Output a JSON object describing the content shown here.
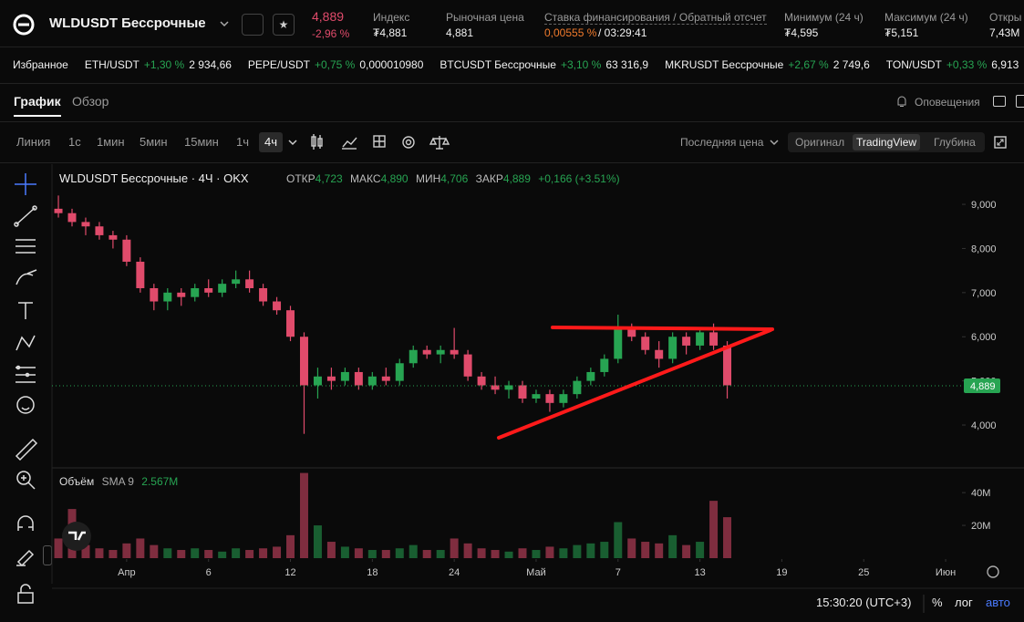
{
  "header": {
    "symbol": "WLDUSDT Бессрочные",
    "price": "4,889",
    "change": "-2,96 %",
    "index": {
      "label": "Индекс",
      "value": "₮4,881"
    },
    "mark": {
      "label": "Рыночная цена",
      "value": "4,881"
    },
    "funding": {
      "label": "Ставка финансирования / Обратный отсчет",
      "rate": "0,00555 %",
      "countdown": "/ 03:29:41"
    },
    "low": {
      "label": "Минимум (24 ч)",
      "value": "₮4,595"
    },
    "high": {
      "label": "Максимум (24 ч)",
      "value": "₮5,151"
    },
    "open_interest": {
      "label": "Откры",
      "value": "7,43M"
    }
  },
  "favorites": {
    "label": "Избранное",
    "items": [
      {
        "pair": "ETH/USDT",
        "change": "+1,30 %",
        "price": "2 934,66"
      },
      {
        "pair": "PEPE/USDT",
        "change": "+0,75 %",
        "price": "0,000010980"
      },
      {
        "pair": "BTCUSDT Бессрочные",
        "change": "+3,10 %",
        "price": "63 316,9"
      },
      {
        "pair": "MKRUSDT Бессрочные",
        "change": "+2,67 %",
        "price": "2 749,6"
      },
      {
        "pair": "TON/USDT",
        "change": "+0,33 %",
        "price": "6,913"
      }
    ]
  },
  "tabs": [
    "График",
    "Обзор"
  ],
  "alerts": "Оповещения",
  "intervals": [
    "Линия",
    "1с",
    "1мин",
    "5мин",
    "15мин",
    "1ч",
    "4ч"
  ],
  "price_source": "Последняя цена",
  "views": [
    "Оригинал",
    "TradingView",
    "Глубина"
  ],
  "legend": {
    "title": "WLDUSDT Бессрочные · 4Ч · OKX",
    "items": [
      {
        "label": "ОТКР",
        "value": "4,723"
      },
      {
        "label": "МАКС",
        "value": "4,890"
      },
      {
        "label": "МИН",
        "value": "4,706"
      },
      {
        "label": "ЗАКР",
        "value": "4,889"
      }
    ],
    "change": "+0,166 (+3.51%)"
  },
  "volume_legend": {
    "label": "Объём",
    "sma": "SMA 9",
    "value": "2.567M"
  },
  "status": {
    "time": "15:30:20 (UTC+3)",
    "percent": "%",
    "log": "лог",
    "auto": "авто"
  },
  "chart_data": {
    "type": "candlestick",
    "up_color": "#27a452",
    "down_color": "#e04b6b",
    "grid": false,
    "x": [
      -5,
      -4,
      -3,
      -2,
      -1,
      0,
      1,
      2,
      3,
      4,
      5,
      6,
      7,
      8,
      9,
      10,
      11,
      12,
      13,
      14,
      15,
      16,
      17,
      18,
      19,
      20,
      21,
      22,
      23,
      24,
      25,
      26,
      27,
      28,
      29,
      30,
      31,
      32,
      33,
      34,
      35,
      36,
      37,
      38,
      39,
      40,
      41,
      42,
      43,
      44
    ],
    "open": [
      8.9,
      8.8,
      8.6,
      8.5,
      8.3,
      8.2,
      7.7,
      7.1,
      6.8,
      7.0,
      6.9,
      7.1,
      7.0,
      7.2,
      7.3,
      7.1,
      6.8,
      6.6,
      6.0,
      4.9,
      5.1,
      5.0,
      5.2,
      4.9,
      5.1,
      5.0,
      5.4,
      5.7,
      5.6,
      5.7,
      5.6,
      5.1,
      4.9,
      4.8,
      4.9,
      4.6,
      4.7,
      4.5,
      4.7,
      5.0,
      5.2,
      5.5,
      6.2,
      6.0,
      5.7,
      5.5,
      6.0,
      5.8,
      6.1,
      5.8
    ],
    "high": [
      9.2,
      8.9,
      8.7,
      8.6,
      8.4,
      8.3,
      7.8,
      7.2,
      7.1,
      7.1,
      7.2,
      7.3,
      7.3,
      7.5,
      7.5,
      7.2,
      6.9,
      6.7,
      6.1,
      5.3,
      5.3,
      5.3,
      5.3,
      5.2,
      5.3,
      5.5,
      5.8,
      5.8,
      5.8,
      6.2,
      5.7,
      5.2,
      5.1,
      5.0,
      5.0,
      4.8,
      4.8,
      4.8,
      5.1,
      5.3,
      5.6,
      6.5,
      6.3,
      6.1,
      5.9,
      6.1,
      6.1,
      6.2,
      6.3,
      5.9
    ],
    "low": [
      8.7,
      8.5,
      8.3,
      8.2,
      8.0,
      7.6,
      7.0,
      6.6,
      6.6,
      6.7,
      6.8,
      6.9,
      6.9,
      7.1,
      7.0,
      6.7,
      6.5,
      5.9,
      3.8,
      4.6,
      4.8,
      4.9,
      4.8,
      4.8,
      4.9,
      4.9,
      5.3,
      5.5,
      5.4,
      5.5,
      5.0,
      4.8,
      4.7,
      4.6,
      4.5,
      4.5,
      4.3,
      4.4,
      4.6,
      4.9,
      5.1,
      5.4,
      5.9,
      5.6,
      5.3,
      5.4,
      5.6,
      5.7,
      5.7,
      4.6
    ],
    "close": [
      8.8,
      8.6,
      8.5,
      8.3,
      8.2,
      7.7,
      7.1,
      6.8,
      7.0,
      6.9,
      7.1,
      7.0,
      7.2,
      7.3,
      7.1,
      6.8,
      6.6,
      6.0,
      4.9,
      5.1,
      5.0,
      5.2,
      4.9,
      5.1,
      5.0,
      5.4,
      5.7,
      5.6,
      5.7,
      5.6,
      5.1,
      4.9,
      4.8,
      4.9,
      4.6,
      4.7,
      4.5,
      4.7,
      5.0,
      5.2,
      5.5,
      6.2,
      6.0,
      5.7,
      5.5,
      6.0,
      5.8,
      6.1,
      5.8,
      4.9
    ],
    "xlim": [
      -5.47,
      61.2
    ],
    "xticks": [
      {
        "value": 0,
        "label": "Апр"
      },
      6,
      12,
      18,
      24,
      {
        "value": 30,
        "label": "Май"
      },
      {
        "value": 36,
        "label": "7"
      },
      {
        "value": 42,
        "label": "13"
      },
      {
        "value": 48,
        "label": "19"
      },
      {
        "value": 54,
        "label": "25"
      },
      {
        "value": 60,
        "label": "Июн"
      }
    ],
    "ylim": [
      3.05,
      9.91
    ],
    "yticks": [
      {
        "value": 4,
        "label": "4,000"
      },
      {
        "value": 5,
        "label": "5,000"
      },
      {
        "value": 6,
        "label": "6,000"
      },
      {
        "value": 7,
        "label": "7,000"
      },
      {
        "value": 8,
        "label": "8,000"
      },
      {
        "value": 9,
        "label": "9,000"
      }
    ],
    "last_price": {
      "value": 4.889,
      "label": "4,889",
      "color": "#27a452"
    },
    "volume": {
      "values": [
        12,
        30,
        8,
        6,
        5,
        9,
        12,
        8,
        6,
        5,
        6,
        5,
        4,
        6,
        5,
        6,
        7,
        14,
        52,
        20,
        10,
        7,
        6,
        5,
        5,
        6,
        8,
        5,
        5,
        12,
        9,
        6,
        5,
        4,
        6,
        5,
        7,
        6,
        8,
        9,
        10,
        22,
        12,
        10,
        9,
        14,
        8,
        10,
        35,
        25
      ],
      "ylim": [
        0,
        54
      ],
      "yticks": [
        {
          "value": 20,
          "label": "20M"
        },
        {
          "value": 40,
          "label": "40M"
        }
      ]
    }
  }
}
